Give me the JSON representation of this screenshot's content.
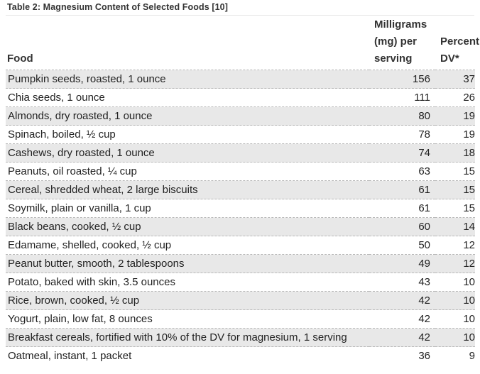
{
  "caption": "Table 2: Magnesium Content of Selected Foods [10]",
  "headers": {
    "food": "Food",
    "mg_line1": "Milligrams",
    "mg_line2": "(mg) per",
    "mg_line3": "serving",
    "dv_line1": "Percent",
    "dv_line2": "DV*"
  },
  "rows": [
    {
      "food": "Pumpkin seeds, roasted, 1 ounce",
      "mg": "156",
      "dv": "37"
    },
    {
      "food": "Chia seeds, 1 ounce",
      "mg": "111",
      "dv": "26"
    },
    {
      "food": "Almonds, dry roasted, 1 ounce",
      "mg": "80",
      "dv": "19"
    },
    {
      "food": "Spinach, boiled, ½ cup",
      "mg": "78",
      "dv": "19"
    },
    {
      "food": "Cashews, dry roasted, 1 ounce",
      "mg": "74",
      "dv": "18"
    },
    {
      "food": "Peanuts, oil roasted, ¼ cup",
      "mg": "63",
      "dv": "15"
    },
    {
      "food": "Cereal, shredded wheat, 2 large biscuits",
      "mg": "61",
      "dv": "15"
    },
    {
      "food": "Soymilk, plain or vanilla, 1 cup",
      "mg": "61",
      "dv": "15"
    },
    {
      "food": "Black beans, cooked, ½ cup",
      "mg": "60",
      "dv": "14"
    },
    {
      "food": "Edamame, shelled, cooked, ½ cup",
      "mg": "50",
      "dv": "12"
    },
    {
      "food": "Peanut butter, smooth, 2 tablespoons",
      "mg": "49",
      "dv": "12"
    },
    {
      "food": "Potato, baked with skin, 3.5 ounces",
      "mg": "43",
      "dv": "10"
    },
    {
      "food": "Rice, brown, cooked, ½ cup",
      "mg": "42",
      "dv": "10"
    },
    {
      "food": "Yogurt, plain, low fat, 8 ounces",
      "mg": "42",
      "dv": "10"
    },
    {
      "food": "Breakfast cereals, fortified with 10% of the DV for magnesium, 1 serving",
      "mg": "42",
      "dv": "10"
    },
    {
      "food": "Oatmeal, instant, 1 packet",
      "mg": "36",
      "dv": "9"
    }
  ]
}
